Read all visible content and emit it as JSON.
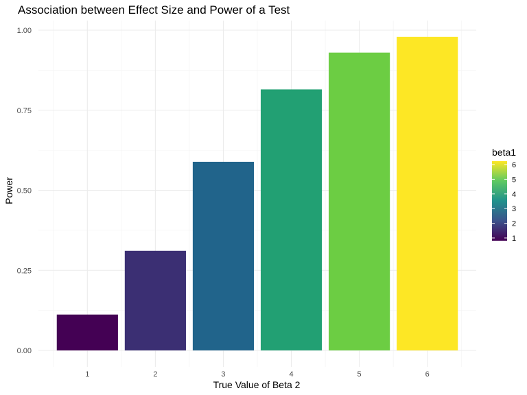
{
  "chart_data": {
    "type": "bar",
    "title": "Association between Effect Size and Power of a Test",
    "xlabel": "True Value of Beta 2",
    "ylabel": "Power",
    "categories": [
      "1",
      "2",
      "3",
      "4",
      "5",
      "6"
    ],
    "values": [
      0.112,
      0.311,
      0.589,
      0.815,
      0.93,
      0.979
    ],
    "fill_values": [
      1,
      2,
      3,
      4,
      5,
      6
    ],
    "bar_colors": [
      "#440154",
      "#3b2f73",
      "#21648b",
      "#22a073",
      "#6ccd43",
      "#fde725"
    ],
    "ylim": [
      0,
      1.03
    ],
    "yticks": [
      0,
      0.25,
      0.5,
      0.75,
      1.0
    ],
    "ytick_labels": [
      "0.00",
      "0.25",
      "0.50",
      "0.75",
      "1.00"
    ],
    "grid": true,
    "legend": {
      "title": "beta1",
      "placement": "right",
      "ticks": [
        1,
        2,
        3,
        4,
        5,
        6
      ],
      "tick_labels": [
        "1",
        "2",
        "3",
        "4",
        "5",
        "6"
      ],
      "gradient_stops": [
        "#440154",
        "#3b528b",
        "#21918c",
        "#5ec962",
        "#fde725"
      ]
    }
  }
}
